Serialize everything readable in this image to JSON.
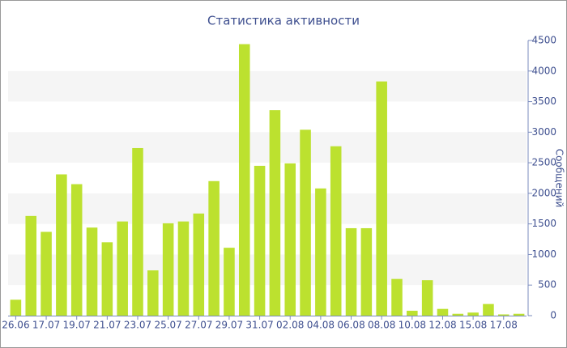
{
  "chart_data": {
    "type": "bar",
    "title": "Статистика активности",
    "y_label": "Сообщений",
    "categories": [
      "26.06",
      null,
      "17.07",
      null,
      "19.07",
      null,
      "21.07",
      null,
      "23.07",
      null,
      "25.07",
      null,
      "27.07",
      null,
      "29.07",
      null,
      "31.07",
      null,
      "02.08",
      null,
      "04.08",
      null,
      "06.08",
      null,
      "08.08",
      null,
      "10.08",
      null,
      "12.08",
      null,
      "15.08",
      null,
      "17.08",
      null
    ],
    "values": [
      260,
      1630,
      1370,
      2310,
      2150,
      1440,
      1200,
      1540,
      2740,
      740,
      1510,
      1540,
      1670,
      2200,
      1110,
      4440,
      2450,
      3360,
      2490,
      3040,
      2080,
      2770,
      1430,
      1430,
      3830,
      600,
      80,
      580,
      110,
      30,
      50,
      190,
      20,
      30
    ],
    "color": "#bce12f",
    "ylim": [
      0,
      4500
    ],
    "yticks": [
      0,
      500,
      1000,
      1500,
      2000,
      2500,
      3000,
      3500,
      4000,
      4500
    ],
    "grid": true,
    "y_axis_side": "right"
  }
}
